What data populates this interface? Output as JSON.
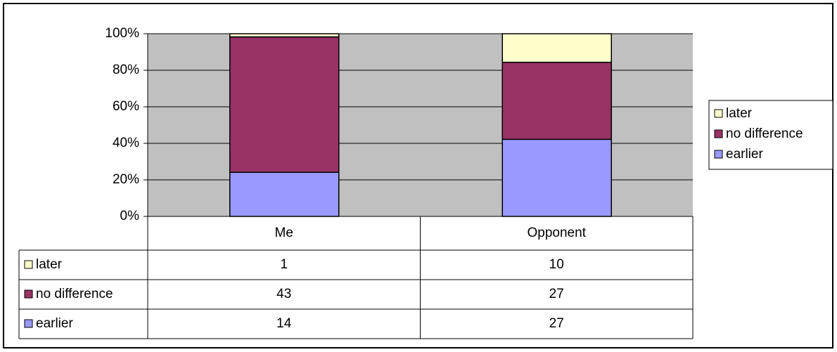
{
  "chart_data": {
    "type": "stacked_percent_bar",
    "categories": [
      "Me",
      "Opponent"
    ],
    "series": [
      {
        "name": "earlier",
        "color": "#9999ff",
        "values": [
          14,
          27
        ]
      },
      {
        "name": "no difference",
        "color": "#993366",
        "values": [
          43,
          27
        ]
      },
      {
        "name": "later",
        "color": "#ffffcc",
        "values": [
          1,
          10
        ]
      }
    ],
    "ylim": [
      0,
      100
    ],
    "yticks": [
      {
        "value": 0,
        "label": "0%"
      },
      {
        "value": 20,
        "label": "20%"
      },
      {
        "value": 40,
        "label": "40%"
      },
      {
        "value": 60,
        "label": "60%"
      },
      {
        "value": 80,
        "label": "80%"
      },
      {
        "value": 100,
        "label": "100%"
      }
    ],
    "grid": true,
    "legend": "right",
    "data_table": true
  }
}
